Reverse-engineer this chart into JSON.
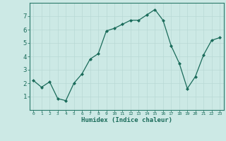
{
  "x": [
    0,
    1,
    2,
    3,
    4,
    5,
    6,
    7,
    8,
    9,
    10,
    11,
    12,
    13,
    14,
    15,
    16,
    17,
    18,
    19,
    20,
    21,
    22,
    23
  ],
  "y": [
    2.2,
    1.7,
    2.1,
    0.85,
    0.7,
    2.0,
    2.7,
    3.8,
    4.2,
    5.9,
    6.1,
    6.4,
    6.7,
    6.7,
    7.1,
    7.5,
    6.7,
    4.8,
    3.5,
    1.6,
    2.5,
    4.1,
    5.2,
    5.4
  ],
  "line_color": "#1a6b5a",
  "marker": "D",
  "marker_size": 2.0,
  "bg_color": "#cce9e5",
  "grid_color": "#b8d8d4",
  "xlabel": "Humidex (Indice chaleur)",
  "xlim": [
    -0.5,
    23.5
  ],
  "ylim": [
    0,
    8
  ],
  "yticks": [
    1,
    2,
    3,
    4,
    5,
    6,
    7
  ],
  "xticks": [
    0,
    1,
    2,
    3,
    4,
    5,
    6,
    7,
    8,
    9,
    10,
    11,
    12,
    13,
    14,
    15,
    16,
    17,
    18,
    19,
    20,
    21,
    22,
    23
  ],
  "tick_color": "#1a6b5a",
  "label_color": "#1a6b5a",
  "axis_color": "#2a7a6a"
}
